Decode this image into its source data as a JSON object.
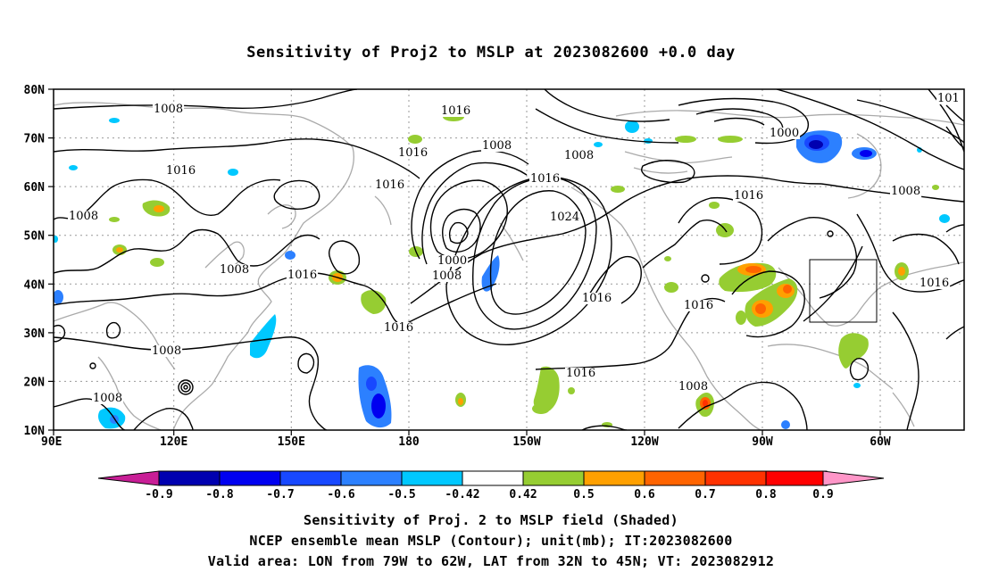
{
  "title": "Sensitivity of Proj2 to MSLP at 2023082600 +0.0 day",
  "lat_labels": [
    "80N",
    "70N",
    "60N",
    "50N",
    "40N",
    "30N",
    "20N",
    "10N"
  ],
  "lon_labels": [
    "90E",
    "120E",
    "150E",
    "180",
    "150W",
    "120W",
    "90W",
    "60W"
  ],
  "contour_labels": [
    "1008",
    "1016",
    "1008",
    "1016",
    "1008",
    "1016",
    "1000",
    "1008",
    "1016",
    "1016",
    "1016",
    "1008",
    "1024",
    "1008",
    "1000",
    "1016",
    "1016",
    "1016",
    "1016",
    "1008",
    "1008",
    "1016",
    "1008",
    "1008",
    "1016",
    "101"
  ],
  "colorbar": {
    "labels": [
      "-0.9",
      "-0.8",
      "-0.7",
      "-0.6",
      "-0.5",
      "-0.42",
      "0.42",
      "0.5",
      "0.6",
      "0.7",
      "0.8",
      "0.9"
    ],
    "colors": [
      "#0000b0",
      "#0000f0",
      "#1848ff",
      "#2c80ff",
      "#00c8ff",
      "#ffffff",
      "#96cd32",
      "#ffa000",
      "#ff6400",
      "#ff3200",
      "#ff0000"
    ],
    "low_end_color": "#c81e96",
    "high_end_color": "#ff96c8"
  },
  "captions": {
    "line1": "Sensitivity of Proj. 2 to MSLP field (Shaded)",
    "line2": "NCEP ensemble mean MSLP (Contour); unit(mb); IT:2023082600",
    "line3": "Valid area: LON from 79W to 62W, LAT from 32N to 45N; VT: 2023082912"
  }
}
